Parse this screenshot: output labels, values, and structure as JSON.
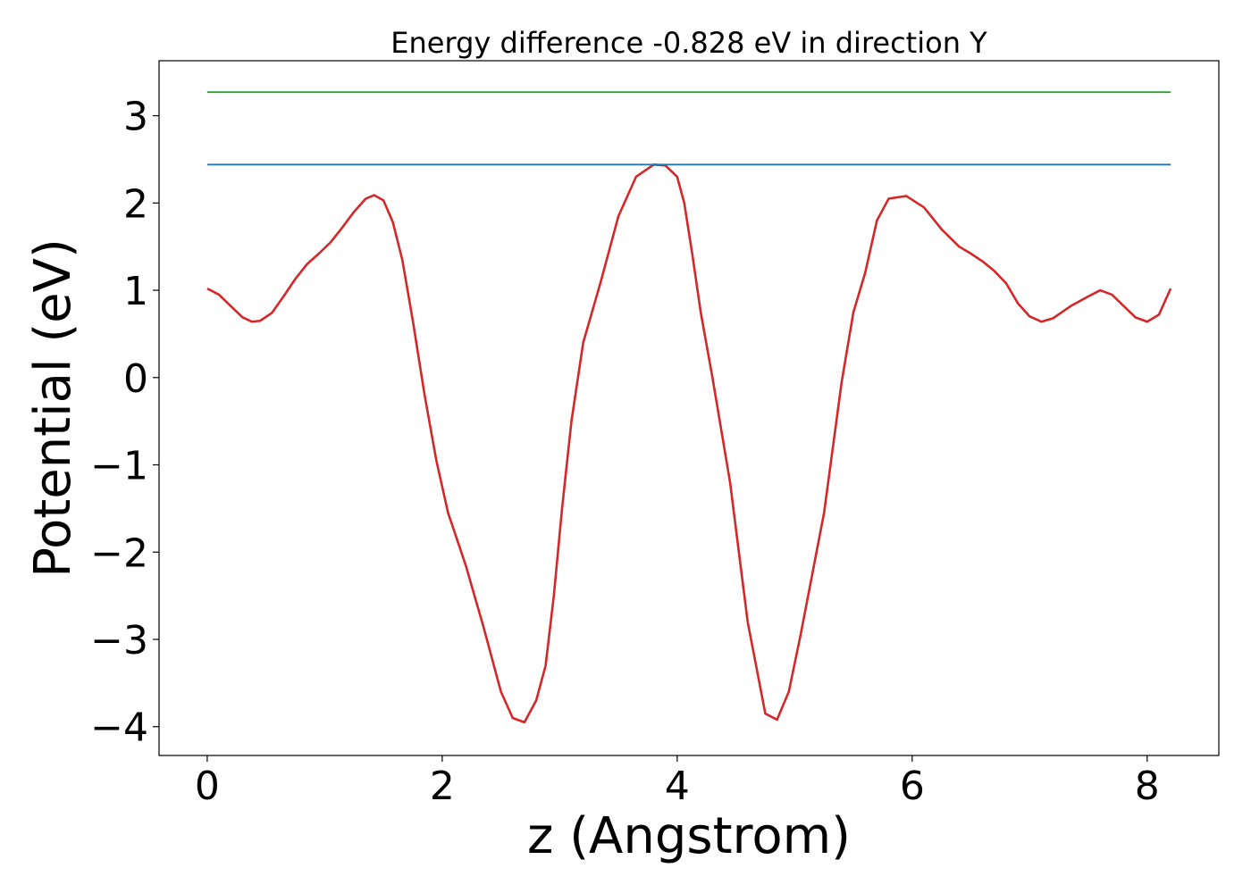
{
  "chart_data": {
    "type": "line",
    "title": "Energy difference -0.828 eV in direction Y",
    "xlabel": "z (Angstrom)",
    "ylabel": "Potential (eV)",
    "xlim": [
      -0.41,
      8.61
    ],
    "ylim": [
      -4.33,
      3.63
    ],
    "xticks": [
      0,
      2,
      4,
      6,
      8
    ],
    "yticks": [
      -4,
      -3,
      -2,
      -1,
      0,
      1,
      2,
      3
    ],
    "xtick_labels": [
      "0",
      "2",
      "4",
      "6",
      "8"
    ],
    "ytick_labels": [
      "−4",
      "−3",
      "−2",
      "−1",
      "0",
      "1",
      "2",
      "3"
    ],
    "grid": false,
    "legend": "none",
    "series": [
      {
        "color": "#d62728",
        "x": [
          0.0,
          0.1,
          0.2,
          0.3,
          0.38,
          0.45,
          0.55,
          0.65,
          0.75,
          0.85,
          0.95,
          1.05,
          1.15,
          1.25,
          1.35,
          1.42,
          1.5,
          1.58,
          1.66,
          1.75,
          1.85,
          1.95,
          2.05,
          2.2,
          2.35,
          2.5,
          2.6,
          2.7,
          2.8,
          2.88,
          2.95,
          3.02,
          3.1,
          3.2,
          3.35,
          3.5,
          3.65,
          3.8,
          3.9,
          4.0,
          4.06,
          4.13,
          4.2,
          4.3,
          4.45,
          4.6,
          4.75,
          4.85,
          4.95,
          5.05,
          5.15,
          5.25,
          5.32,
          5.4,
          5.5,
          5.6,
          5.7,
          5.8,
          5.95,
          6.1,
          6.25,
          6.4,
          6.5,
          6.6,
          6.7,
          6.8,
          6.9,
          7.0,
          7.1,
          7.2,
          7.35,
          7.5,
          7.6,
          7.7,
          7.8,
          7.9,
          8.0,
          8.1,
          8.2
        ],
        "y": [
          1.02,
          0.95,
          0.82,
          0.69,
          0.64,
          0.65,
          0.74,
          0.93,
          1.13,
          1.3,
          1.42,
          1.55,
          1.72,
          1.9,
          2.05,
          2.09,
          2.03,
          1.78,
          1.35,
          0.65,
          -0.2,
          -0.95,
          -1.55,
          -2.15,
          -2.85,
          -3.6,
          -3.9,
          -3.95,
          -3.7,
          -3.3,
          -2.5,
          -1.5,
          -0.5,
          0.4,
          1.1,
          1.85,
          2.3,
          2.44,
          2.43,
          2.3,
          2.0,
          1.4,
          0.75,
          0.0,
          -1.2,
          -2.8,
          -3.85,
          -3.92,
          -3.6,
          -2.95,
          -2.25,
          -1.55,
          -0.85,
          -0.05,
          0.75,
          1.2,
          1.8,
          2.05,
          2.08,
          1.95,
          1.7,
          1.5,
          1.42,
          1.33,
          1.22,
          1.08,
          0.85,
          0.7,
          0.64,
          0.68,
          0.82,
          0.93,
          1.0,
          0.95,
          0.82,
          0.69,
          0.64,
          0.72,
          1.02
        ]
      },
      {
        "color": "#1f77b4",
        "x": [
          0.0,
          8.2
        ],
        "y": [
          2.44,
          2.44
        ]
      },
      {
        "color": "#2ca02c",
        "x": [
          0.0,
          8.2
        ],
        "y": [
          3.27,
          3.27
        ]
      }
    ]
  }
}
